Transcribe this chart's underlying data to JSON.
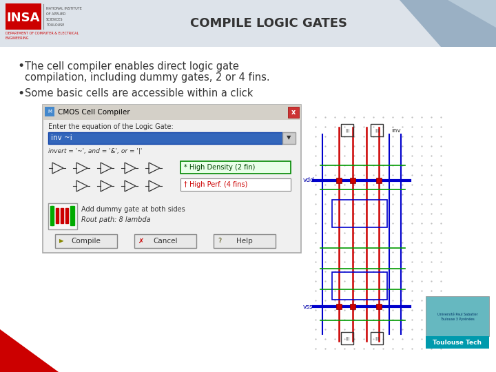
{
  "title": "COMPILE LOGIC GATES",
  "title_fontsize": 13,
  "title_color": "#333333",
  "slide_bg": "#ffffff",
  "bullet1_line1": "The cell compiler enables direct logic gate",
  "bullet1_line2": "compilation, including dummy gates, 2 or 4 fins.",
  "bullet2": "Some basic cells are accessible within a click",
  "bullet_fontsize": 10.5,
  "insa_color": "#cc0000",
  "dialog_title": "CMOS Cell Compiler",
  "dialog_label": "Enter the equation of the Logic Gate:",
  "dialog_input": "inv ~i",
  "dialog_hint": "invert = '~', and = '&', or = '|'",
  "dialog_btn1": "Compile",
  "dialog_btn2": "Cancel",
  "dialog_btn3": "Help",
  "dialog_opt1": "* High Density (2 fin)",
  "dialog_opt2": "† High Perf. (4 fins)",
  "dialog_dummy": "Add dummy gate at both sides",
  "dialog_rout": "Rout path: 8 lambda",
  "footer_text": "Toulouse Tech",
  "footer_bg": "#009aad",
  "header_grey": "#dde3ea",
  "deco_blue1": "#9ab0c4",
  "deco_blue2": "#b8cad8"
}
